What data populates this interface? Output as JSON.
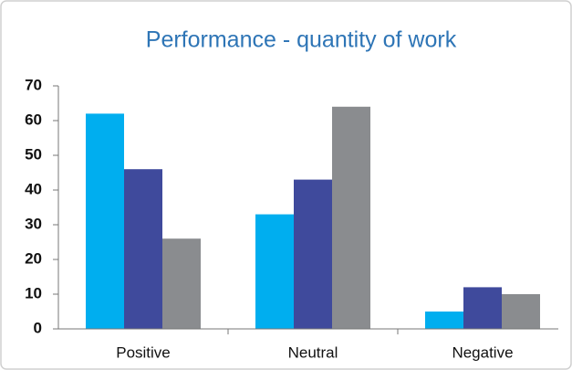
{
  "chart_data": {
    "type": "bar",
    "title": "Performance - quantity of work",
    "categories": [
      "Positive",
      "Neutral",
      "Negative"
    ],
    "series": [
      {
        "color": "#00aeef",
        "values": [
          62,
          33,
          5
        ]
      },
      {
        "color": "#3f4a9c",
        "values": [
          46,
          43,
          12
        ]
      },
      {
        "color": "#8a8c8f",
        "values": [
          26,
          64,
          10
        ]
      }
    ],
    "ylim": [
      0,
      70
    ],
    "yticks": [
      0,
      10,
      20,
      30,
      40,
      50,
      60,
      70
    ],
    "grid": false
  }
}
